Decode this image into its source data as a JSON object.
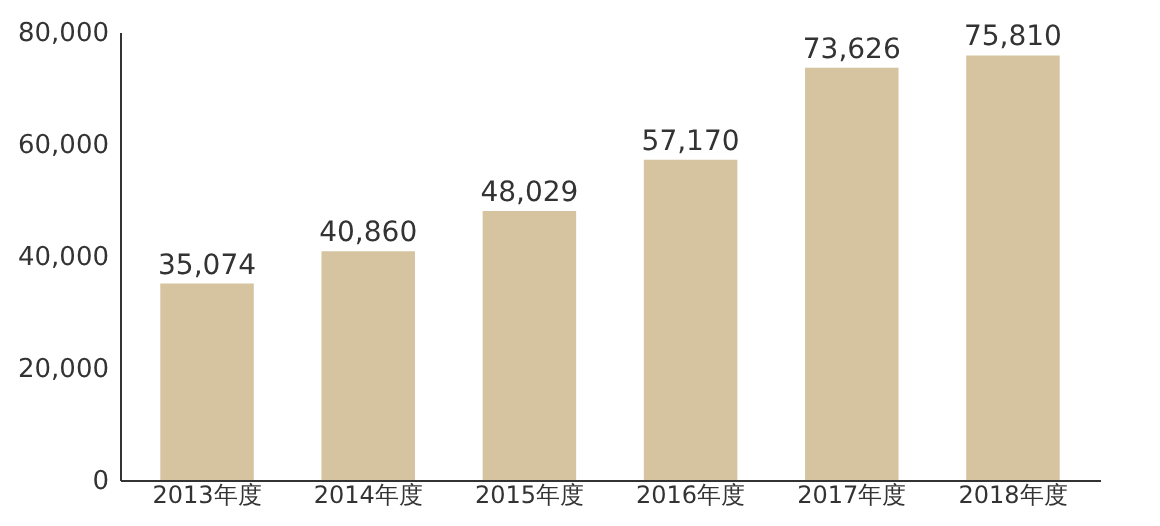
{
  "chart_data": {
    "type": "bar",
    "categories": [
      "2013年度",
      "2014年度",
      "2015年度",
      "2016年度",
      "2017年度",
      "2018年度"
    ],
    "values": [
      35074,
      40860,
      48029,
      57170,
      73626,
      75810
    ],
    "value_labels": [
      "35,074",
      "40,860",
      "48,029",
      "57,170",
      "73,626",
      "75,810"
    ],
    "color": "#d6c39f",
    "ylim": [
      0,
      80000
    ],
    "yticks": [
      0,
      {
        "value": 20000,
        "label": "20,000"
      },
      {
        "value": 40000,
        "label": "40,000"
      },
      {
        "value": 60000,
        "label": "60,000"
      },
      {
        "value": 80000,
        "label": "80,000"
      }
    ],
    "grid": false
  }
}
